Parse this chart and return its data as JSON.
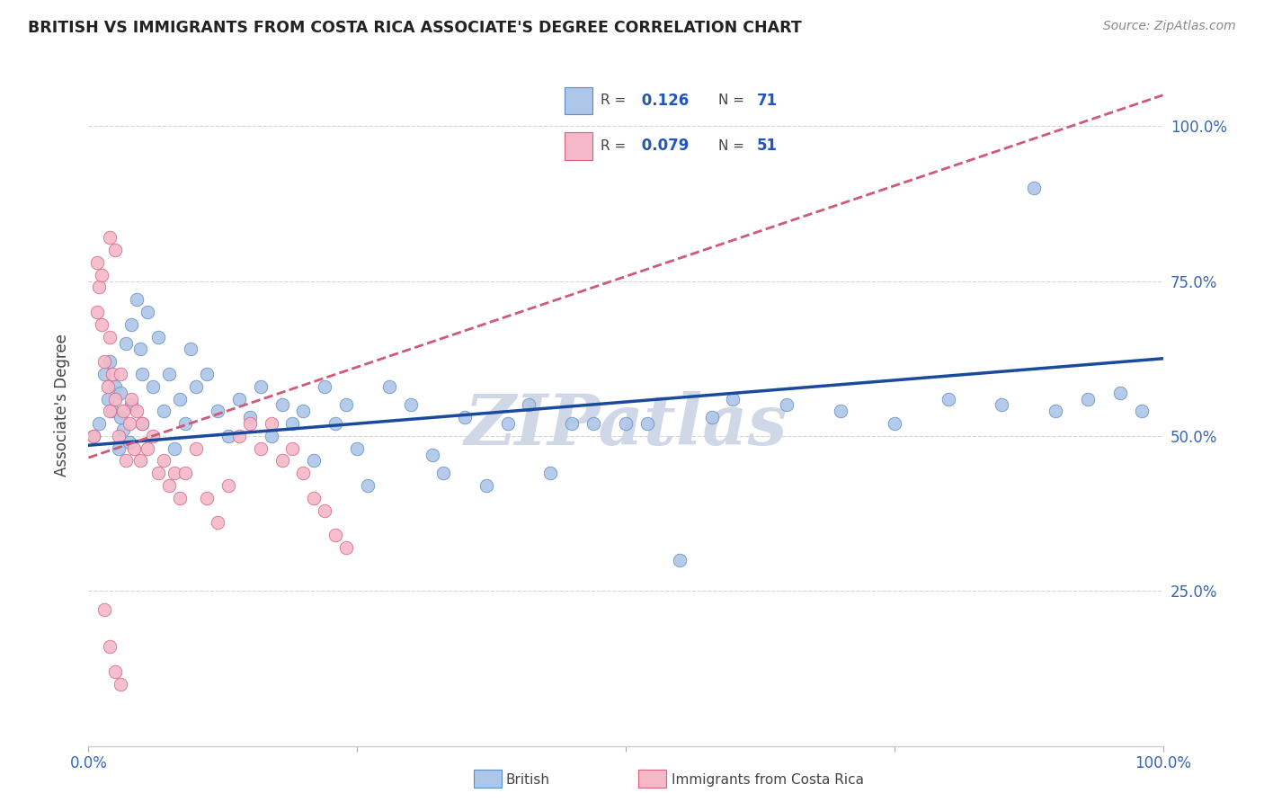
{
  "title": "BRITISH VS IMMIGRANTS FROM COSTA RICA ASSOCIATE'S DEGREE CORRELATION CHART",
  "source": "Source: ZipAtlas.com",
  "ylabel": "Associate's Degree",
  "legend_label_blue": "British",
  "legend_label_pink": "Immigrants from Costa Rica",
  "R_blue": 0.126,
  "N_blue": 71,
  "R_pink": 0.079,
  "N_pink": 51,
  "blue_dot_color": "#aec6e8",
  "blue_dot_edge": "#5b8ec4",
  "pink_dot_color": "#f4b8c8",
  "pink_dot_edge": "#d96080",
  "blue_line_color": "#1a4a9c",
  "pink_line_color": "#d05878",
  "watermark_color": "#d0d8e8",
  "blue_x": [
    0.005,
    0.01,
    0.015,
    0.018,
    0.02,
    0.022,
    0.025,
    0.028,
    0.03,
    0.03,
    0.032,
    0.035,
    0.038,
    0.04,
    0.04,
    0.045,
    0.048,
    0.05,
    0.05,
    0.055,
    0.06,
    0.065,
    0.07,
    0.075,
    0.08,
    0.085,
    0.09,
    0.095,
    0.1,
    0.11,
    0.12,
    0.13,
    0.14,
    0.15,
    0.16,
    0.17,
    0.18,
    0.19,
    0.2,
    0.21,
    0.22,
    0.23,
    0.24,
    0.25,
    0.26,
    0.28,
    0.3,
    0.32,
    0.33,
    0.35,
    0.37,
    0.39,
    0.41,
    0.43,
    0.45,
    0.47,
    0.5,
    0.52,
    0.55,
    0.58,
    0.6,
    0.65,
    0.7,
    0.75,
    0.8,
    0.85,
    0.88,
    0.9,
    0.93,
    0.96,
    0.98
  ],
  "blue_y": [
    0.5,
    0.52,
    0.6,
    0.56,
    0.62,
    0.54,
    0.58,
    0.48,
    0.53,
    0.57,
    0.51,
    0.65,
    0.49,
    0.55,
    0.68,
    0.72,
    0.64,
    0.52,
    0.6,
    0.7,
    0.58,
    0.66,
    0.54,
    0.6,
    0.48,
    0.56,
    0.52,
    0.64,
    0.58,
    0.6,
    0.54,
    0.5,
    0.56,
    0.53,
    0.58,
    0.5,
    0.55,
    0.52,
    0.54,
    0.46,
    0.58,
    0.52,
    0.55,
    0.48,
    0.42,
    0.58,
    0.55,
    0.47,
    0.44,
    0.53,
    0.42,
    0.52,
    0.55,
    0.44,
    0.52,
    0.52,
    0.52,
    0.52,
    0.3,
    0.53,
    0.56,
    0.55,
    0.54,
    0.52,
    0.56,
    0.55,
    0.9,
    0.54,
    0.56,
    0.57,
    0.54
  ],
  "pink_x": [
    0.005,
    0.008,
    0.01,
    0.012,
    0.015,
    0.018,
    0.02,
    0.02,
    0.022,
    0.025,
    0.028,
    0.03,
    0.032,
    0.035,
    0.038,
    0.04,
    0.042,
    0.045,
    0.048,
    0.05,
    0.055,
    0.06,
    0.065,
    0.07,
    0.075,
    0.08,
    0.085,
    0.09,
    0.1,
    0.11,
    0.12,
    0.13,
    0.14,
    0.15,
    0.16,
    0.17,
    0.18,
    0.19,
    0.2,
    0.21,
    0.22,
    0.23,
    0.24,
    0.02,
    0.025,
    0.008,
    0.012,
    0.015,
    0.02,
    0.025,
    0.03
  ],
  "pink_y": [
    0.5,
    0.78,
    0.74,
    0.68,
    0.62,
    0.58,
    0.54,
    0.66,
    0.6,
    0.56,
    0.5,
    0.6,
    0.54,
    0.46,
    0.52,
    0.56,
    0.48,
    0.54,
    0.46,
    0.52,
    0.48,
    0.5,
    0.44,
    0.46,
    0.42,
    0.44,
    0.4,
    0.44,
    0.48,
    0.4,
    0.36,
    0.42,
    0.5,
    0.52,
    0.48,
    0.52,
    0.46,
    0.48,
    0.44,
    0.4,
    0.38,
    0.34,
    0.32,
    0.82,
    0.8,
    0.7,
    0.76,
    0.22,
    0.16,
    0.12,
    0.1
  ],
  "xlim": [
    0,
    1.0
  ],
  "ylim": [
    0.0,
    1.1
  ],
  "xticks": [
    0,
    0.25,
    0.5,
    0.75,
    1.0
  ],
  "yticks": [
    0.25,
    0.5,
    0.75,
    1.0
  ],
  "blue_trendline": [
    0.485,
    0.625
  ],
  "pink_trendline": [
    0.465,
    1.05
  ],
  "fig_width": 14.06,
  "fig_height": 8.92,
  "dpi": 100
}
